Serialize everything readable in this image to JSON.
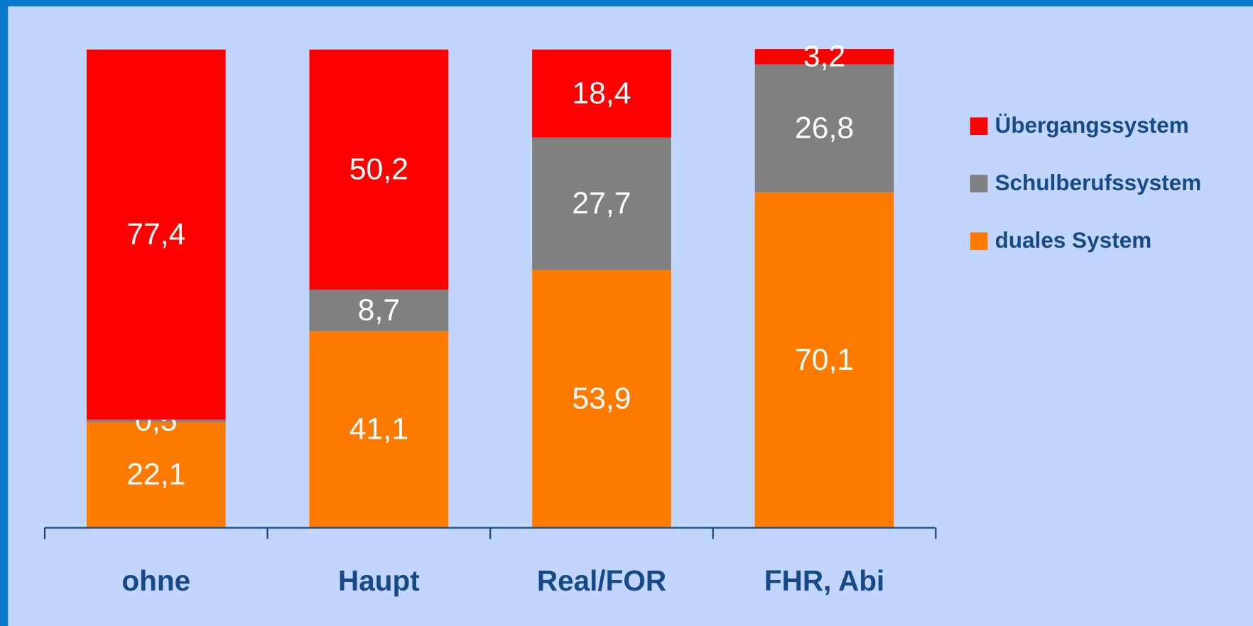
{
  "chart_data": {
    "type": "stacked_bar",
    "categories": [
      "ohne",
      "Haupt",
      "Real/FOR",
      "FHR, Abi"
    ],
    "series": [
      {
        "name": "duales System",
        "color": "#ff7b00",
        "values": [
          22.1,
          41.1,
          53.9,
          70.1
        ],
        "value_labels": [
          "22,1",
          "41,1",
          "53,9",
          "70,1"
        ]
      },
      {
        "name": "Schulberufssystem",
        "color": "#808080",
        "values": [
          0.5,
          8.7,
          27.7,
          26.8
        ],
        "value_labels": [
          "0,5",
          "8,7",
          "27,7",
          "26,8"
        ]
      },
      {
        "name": "Übergangssystem",
        "color": "#ff0000",
        "values": [
          77.4,
          50.2,
          18.4,
          3.2
        ],
        "value_labels": [
          "77,4",
          "50,2",
          "18,4",
          "3,2"
        ]
      }
    ],
    "ylim": [
      0,
      100
    ],
    "legend": "right"
  }
}
